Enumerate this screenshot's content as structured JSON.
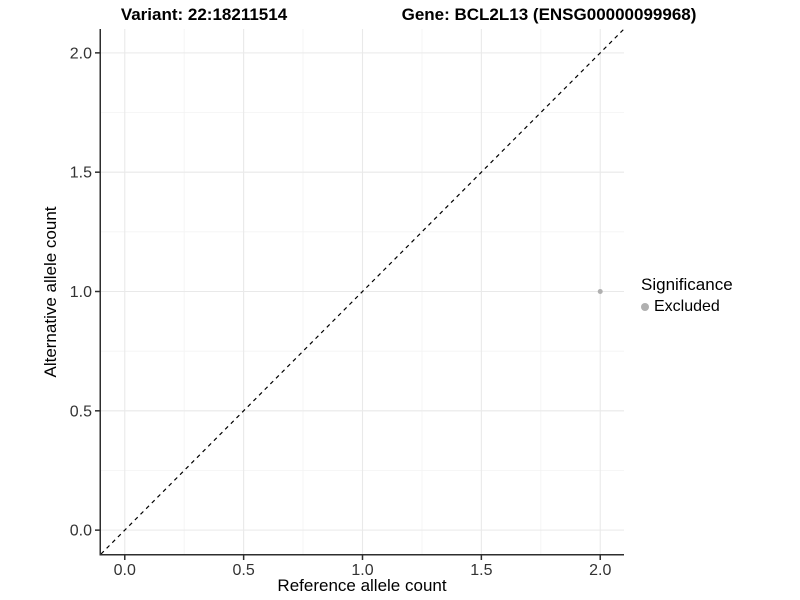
{
  "chart_data": {
    "type": "scatter",
    "title_left": "Variant: 22:18211514",
    "title_right": "Gene: BCL2L13 (ENSG00000099968)",
    "xlabel": "Reference allele count",
    "ylabel": "Alternative allele count",
    "xlim": [
      -0.1,
      2.1
    ],
    "ylim": [
      -0.1,
      2.1
    ],
    "x_ticks": {
      "values": [
        0,
        0.5,
        1,
        1.5,
        2
      ],
      "labels": [
        "0.0",
        "0.5",
        "1.0",
        "1.5",
        "2.0"
      ]
    },
    "y_ticks": {
      "values": [
        0,
        0.5,
        1,
        1.5,
        2
      ],
      "labels": [
        "0.0",
        "0.5",
        "1.0",
        "1.5",
        "2.0"
      ]
    },
    "minor_ticks": [
      0.25,
      0.75,
      1.25,
      1.75
    ],
    "grid": true,
    "points": [
      {
        "x": 2,
        "y": 1,
        "series": "Excluded"
      }
    ],
    "identity_line": {
      "slope": 1,
      "intercept": 0,
      "style": "dashed",
      "color": "#000000"
    },
    "legend": {
      "title": "Significance",
      "position": "right",
      "items": [
        {
          "label": "Excluded",
          "color": "#b0b0b0"
        }
      ]
    },
    "colors": {
      "point_excluded": "#b0b0b0",
      "grid_major": "#e9e9e9",
      "grid_minor": "#f4f4f4",
      "axis_line": "#2e2e2e",
      "tick_text": "#333333",
      "title_text": "#000000"
    }
  }
}
